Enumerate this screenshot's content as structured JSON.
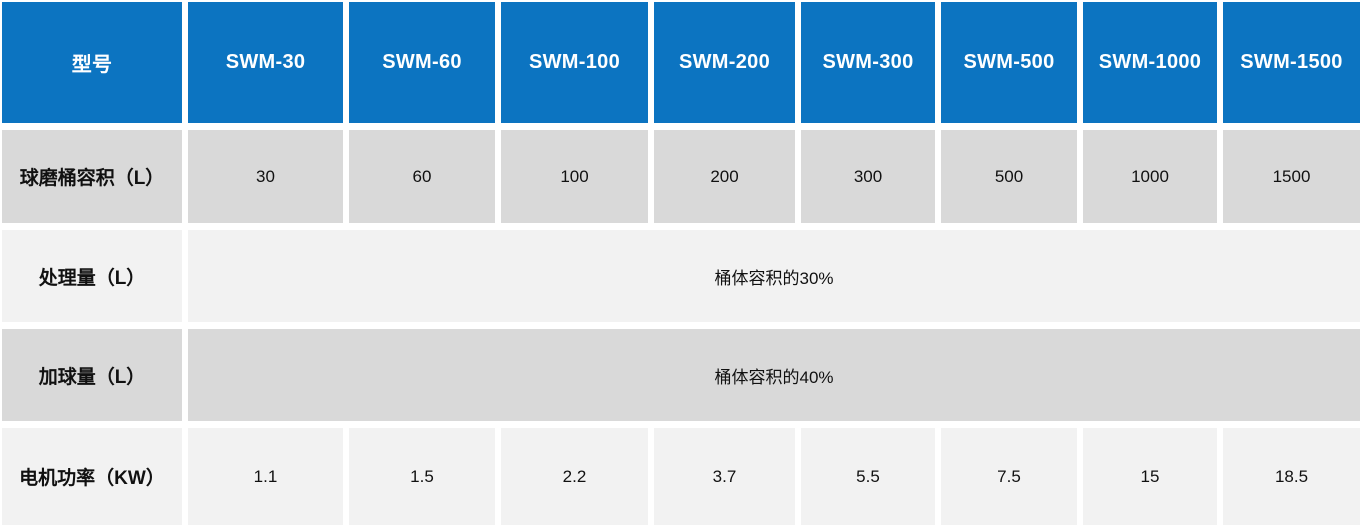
{
  "table": {
    "corner_label": "型号",
    "models": [
      "SWM-30",
      "SWM-60",
      "SWM-100",
      "SWM-200",
      "SWM-300",
      "SWM-500",
      "SWM-1000",
      "SWM-1500"
    ],
    "rows": [
      {
        "label": "球磨桶容积（L）",
        "values": [
          "30",
          "60",
          "100",
          "200",
          "300",
          "500",
          "1000",
          "1500"
        ]
      },
      {
        "label": "处理量（L）",
        "merged_value": "桶体容积的30%"
      },
      {
        "label": "加球量（L）",
        "merged_value": "桶体容积的40%"
      },
      {
        "label": "电机功率（KW）",
        "values": [
          "1.1",
          "1.5",
          "2.2",
          "3.7",
          "5.5",
          "7.5",
          "15",
          "18.5"
        ]
      }
    ]
  },
  "colors": {
    "header_bg": "#0c74c1",
    "header_text": "#ffffff",
    "row_gray_bg": "#d9d9d9",
    "row_light_bg": "#f2f2f2",
    "body_text": "#111111",
    "gap": "#ffffff"
  }
}
